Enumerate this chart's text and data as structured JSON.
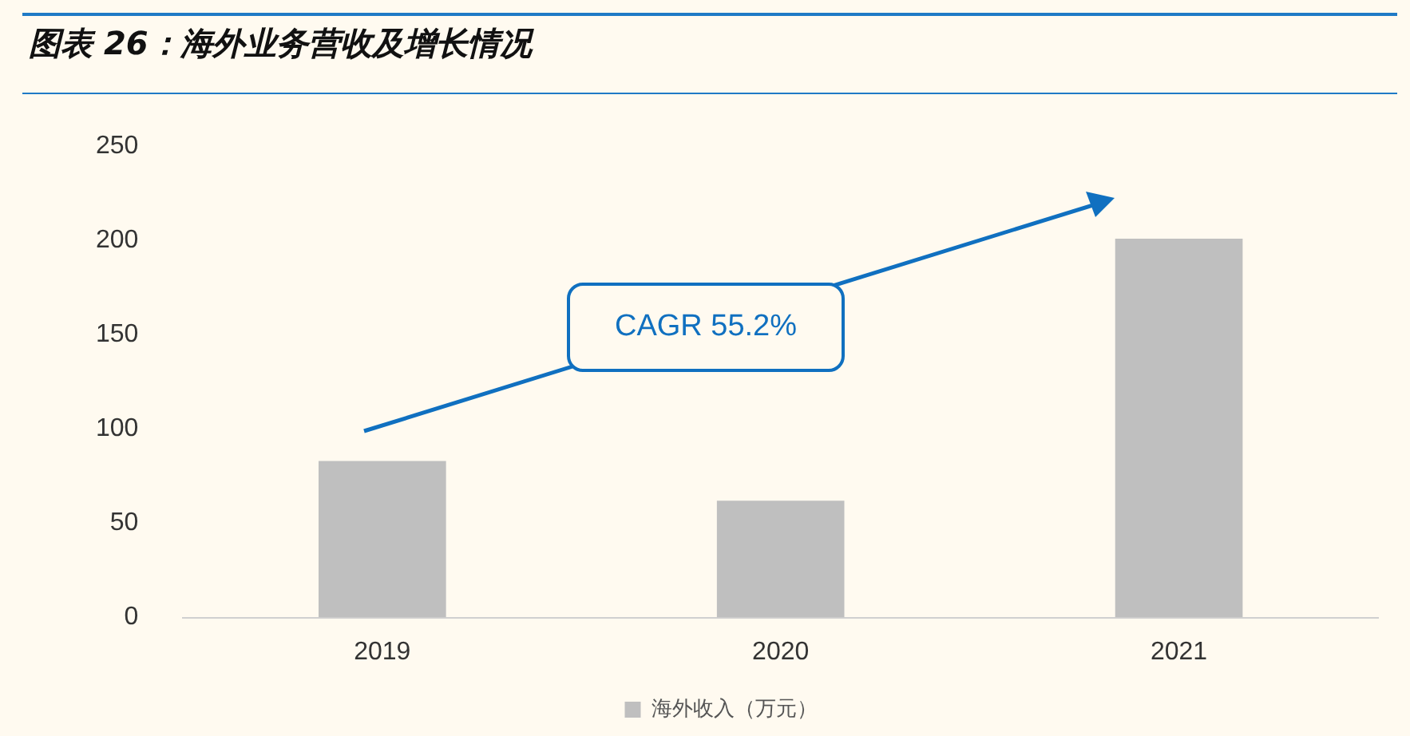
{
  "chart_data": {
    "type": "bar",
    "title": "图表 26：海外业务营收及增长情况",
    "categories": [
      "2019",
      "2020",
      "2021"
    ],
    "series": [
      {
        "name": "海外收入（万元）",
        "color": "#bfbfbf",
        "values": [
          83,
          62,
          201
        ]
      }
    ],
    "ylim": [
      0,
      250
    ],
    "yticks": [
      0,
      50,
      100,
      150,
      200,
      250
    ],
    "grid": false,
    "legend": "bottom",
    "annotations": [
      "CAGR 55.2%"
    ]
  }
}
